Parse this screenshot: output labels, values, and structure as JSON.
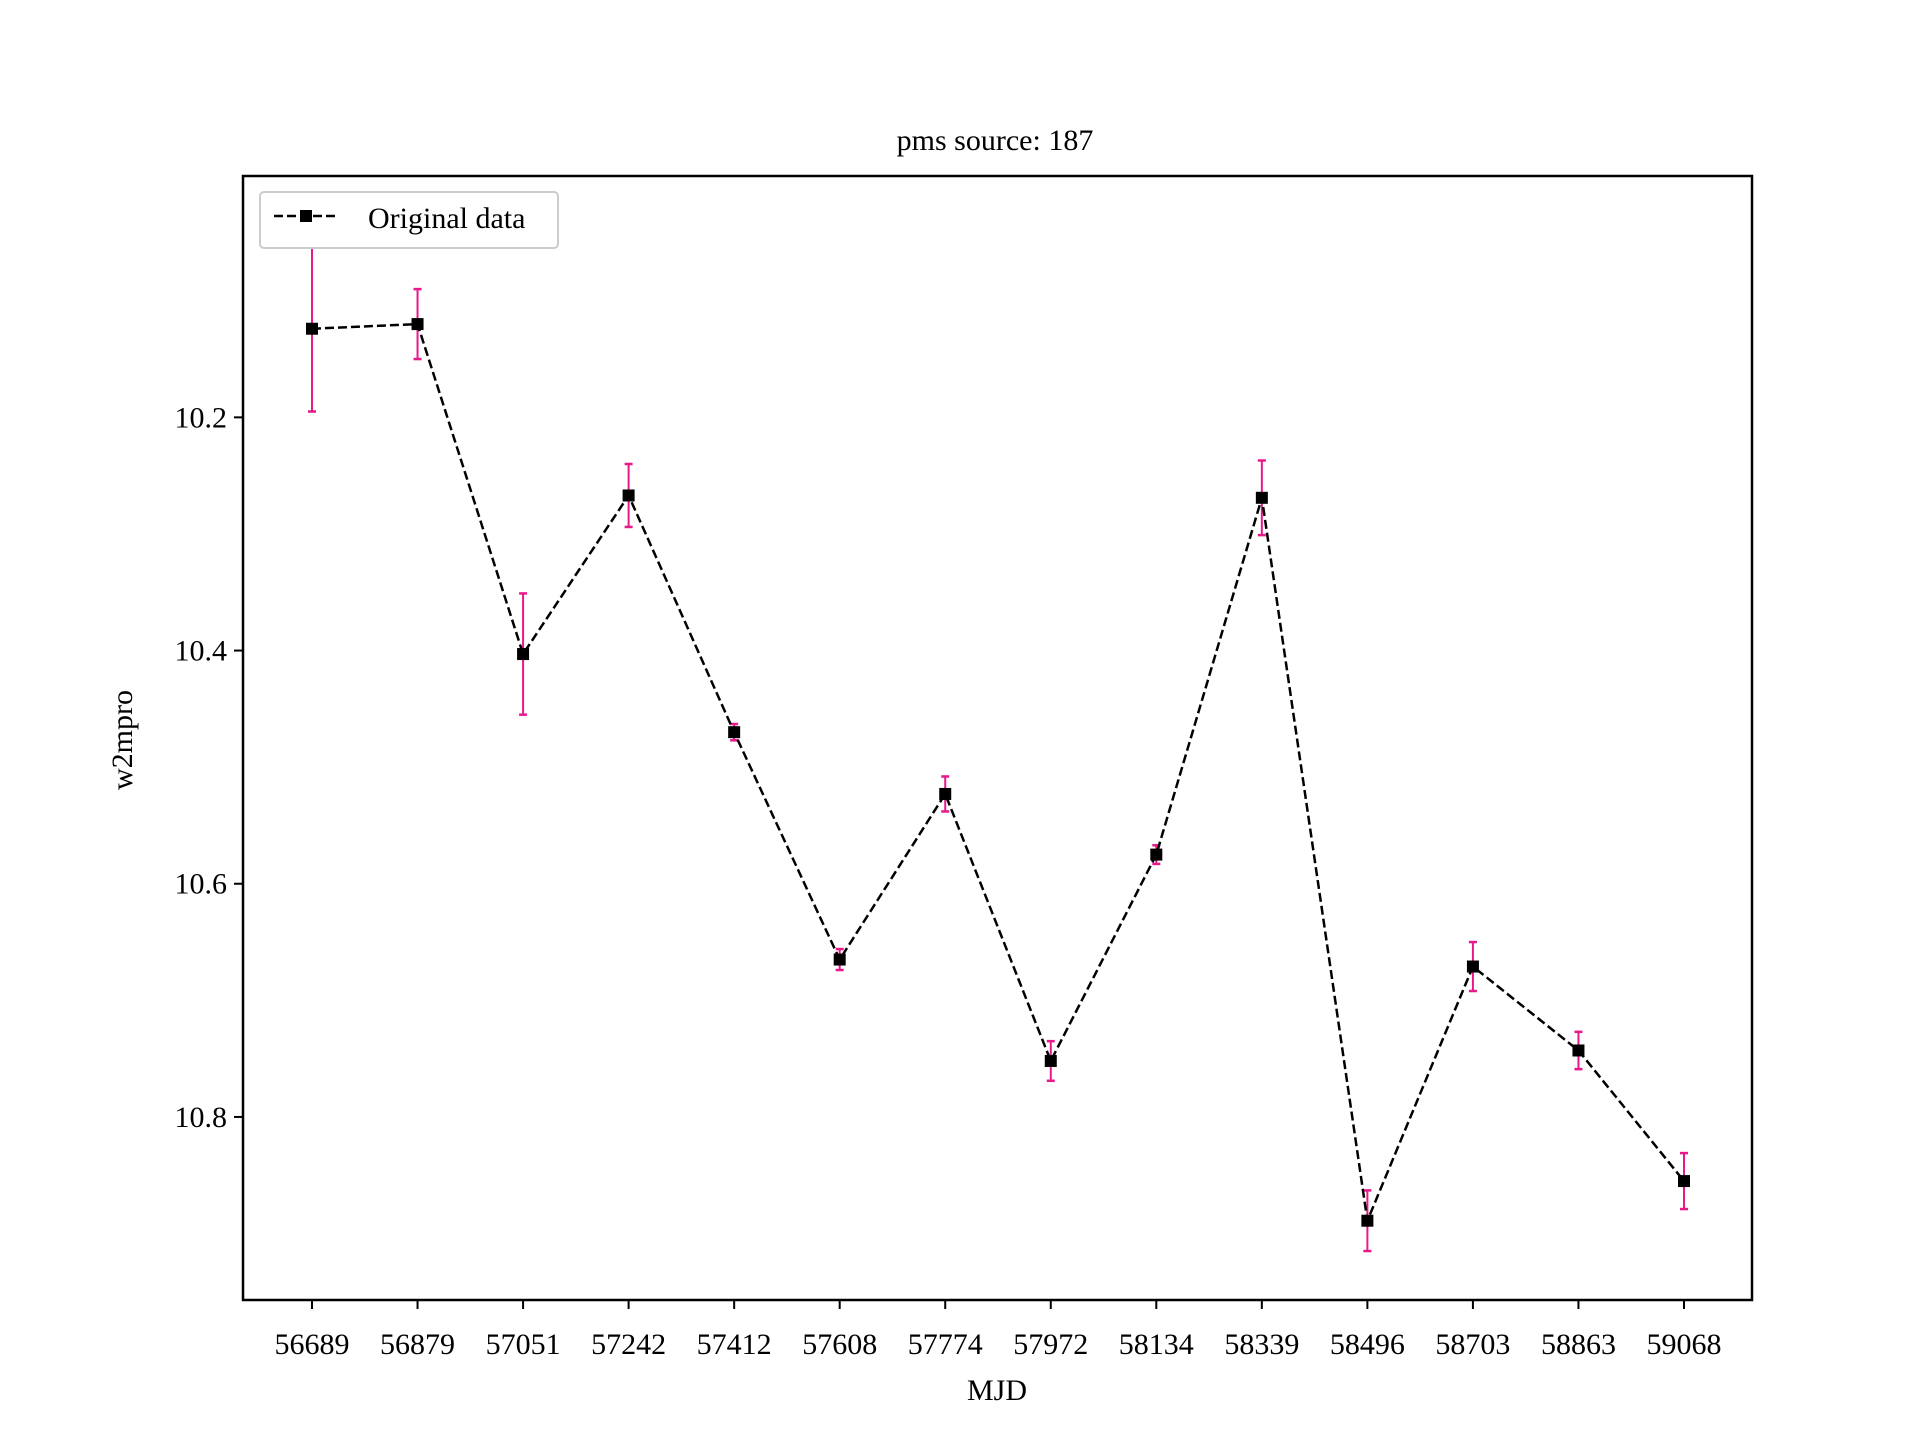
{
  "chart_data": {
    "type": "line",
    "title": "pms source: 187",
    "xlabel": "MJD",
    "ylabel": "w2mpro",
    "y_inverted": true,
    "ylim": [
      10.957,
      9.993
    ],
    "yticks": [
      10.2,
      10.4,
      10.6,
      10.8
    ],
    "x_categories": [
      "56689",
      "56879",
      "57051",
      "57242",
      "57412",
      "57608",
      "57774",
      "57972",
      "58134",
      "58339",
      "58496",
      "58703",
      "58863",
      "59068"
    ],
    "x": [
      56689,
      56879,
      57051,
      57242,
      57412,
      57608,
      57774,
      57972,
      58134,
      58339,
      58496,
      58703,
      58863,
      59068
    ],
    "series": [
      {
        "name": "Original data",
        "values": [
          10.124,
          10.12,
          10.403,
          10.267,
          10.47,
          10.665,
          10.523,
          10.752,
          10.575,
          10.269,
          10.889,
          10.671,
          10.743,
          10.855
        ],
        "errors": [
          0.071,
          0.03,
          0.052,
          0.027,
          0.007,
          0.009,
          0.015,
          0.017,
          0.008,
          0.032,
          0.026,
          0.021,
          0.016,
          0.024
        ],
        "line_color": "#000000",
        "line_style": "dashed",
        "marker": "square",
        "error_color": "#e8198b"
      }
    ],
    "legend_position": "top-left",
    "grid": false
  }
}
